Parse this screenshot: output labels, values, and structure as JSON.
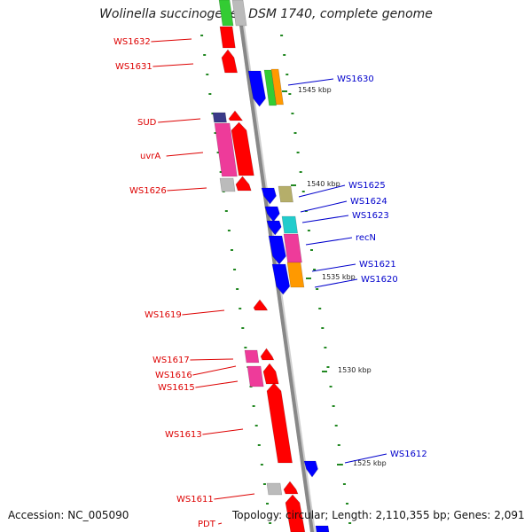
{
  "title": "Wolinella succinogenes DSM 1740, complete genome",
  "footer": {
    "accession": "Accession: NC_005090",
    "summary": "Topology: circular; Length: 2,110,355 bp; Genes: 2,091"
  },
  "colors": {
    "forward": "#ff0000",
    "reverse": "#0000ff",
    "magenta": "#ee3b9a",
    "green": "#33cc33",
    "orange": "#ff9900",
    "olive": "#b5ae6a",
    "cyan": "#22cccc",
    "grey": "#bbbbbb",
    "navy": "#3a3a88",
    "tick": "#228822",
    "axis": "#888888"
  },
  "ticks": [
    "1545 kbp",
    "1540 kbp",
    "1535 kbp",
    "1530 kbp",
    "1525 kbp"
  ],
  "genes_left": [
    "WS1632",
    "WS1631",
    "SUD",
    "uvrA",
    "WS1626",
    "WS1619",
    "WS1617",
    "WS1616",
    "WS1615",
    "WS1613",
    "WS1611",
    "PDT"
  ],
  "genes_right": [
    "WS1630",
    "WS1625",
    "WS1624",
    "WS1623",
    "recN",
    "WS1621",
    "WS1620",
    "WS1612"
  ]
}
